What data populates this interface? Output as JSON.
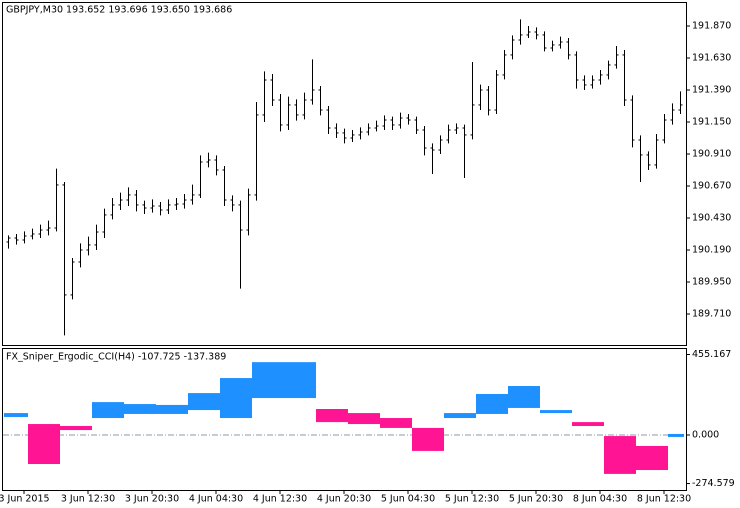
{
  "chart_data": [
    {
      "type": "ohlc",
      "title": "GBPJPY,M30  193.652 193.696 193.650 193.686",
      "color": "#000000",
      "ylim": [
        189.4775,
        192.05
      ],
      "yticks": [
        {
          "value": 191.87,
          "label": "191.870"
        },
        {
          "value": 191.63,
          "label": "191.630"
        },
        {
          "value": 191.39,
          "label": "191.390"
        },
        {
          "value": 191.15,
          "label": "191.150"
        },
        {
          "value": 190.91,
          "label": "190.910"
        },
        {
          "value": 190.67,
          "label": "190.670"
        },
        {
          "value": 190.43,
          "label": "190.430"
        },
        {
          "value": 190.19,
          "label": "190.190"
        },
        {
          "value": 189.95,
          "label": "189.950"
        },
        {
          "value": 189.71,
          "label": "189.710"
        }
      ],
      "open": [
        190.25,
        190.28,
        190.265,
        190.295,
        190.31,
        190.34,
        190.355,
        190.678,
        189.853,
        190.1,
        190.19,
        190.228,
        190.325,
        190.453,
        190.528,
        190.565,
        190.603,
        190.528,
        190.505,
        190.52,
        190.49,
        190.528,
        190.535,
        190.565,
        190.603,
        190.85,
        190.865,
        190.79,
        190.565,
        190.528,
        190.34,
        190.603,
        191.203,
        191.465,
        191.315,
        191.128,
        191.278,
        191.203,
        191.315,
        191.39,
        191.24,
        191.105,
        191.068,
        191.03,
        191.053,
        191.075,
        191.105,
        191.12,
        191.165,
        191.128,
        191.18,
        191.165,
        191.09,
        190.955,
        190.94,
        191.015,
        191.09,
        191.105,
        191.053,
        191.278,
        191.39,
        191.24,
        191.503,
        191.653,
        191.765,
        191.803,
        191.825,
        191.803,
        191.705,
        191.728,
        191.75,
        191.653,
        191.465,
        191.428,
        191.465,
        191.503,
        191.578,
        191.653,
        191.315,
        191.015,
        190.903,
        190.828,
        191.015,
        191.165,
        191.24
      ],
      "high": [
        190.3,
        190.31,
        190.33,
        190.35,
        190.38,
        190.41,
        190.8,
        190.7,
        190.13,
        190.24,
        190.29,
        190.38,
        190.5,
        190.58,
        190.62,
        190.66,
        190.64,
        190.56,
        190.57,
        190.55,
        190.57,
        190.58,
        190.61,
        190.68,
        190.9,
        190.92,
        190.9,
        190.82,
        190.6,
        190.56,
        190.65,
        191.3,
        191.53,
        191.51,
        191.36,
        191.34,
        191.32,
        191.37,
        191.62,
        191.42,
        191.27,
        191.14,
        191.1,
        191.09,
        191.11,
        191.14,
        191.16,
        191.2,
        191.19,
        191.22,
        191.21,
        191.19,
        191.12,
        190.99,
        191.05,
        191.13,
        191.14,
        191.13,
        191.6,
        191.43,
        191.42,
        191.54,
        191.69,
        191.8,
        191.92,
        191.87,
        191.86,
        191.83,
        191.76,
        191.79,
        191.78,
        191.68,
        191.5,
        191.5,
        191.54,
        191.61,
        191.72,
        191.69,
        191.35,
        191.05,
        190.93,
        191.06,
        191.21,
        191.29,
        191.38
      ],
      "low": [
        190.2,
        190.23,
        190.24,
        190.27,
        190.28,
        190.3,
        190.33,
        189.55,
        189.82,
        190.06,
        190.15,
        190.19,
        190.28,
        190.42,
        190.49,
        190.52,
        190.48,
        190.46,
        190.47,
        190.45,
        190.46,
        190.49,
        190.5,
        190.53,
        190.58,
        190.81,
        190.75,
        190.52,
        190.48,
        189.9,
        190.3,
        190.56,
        191.15,
        191.27,
        191.08,
        191.09,
        191.16,
        191.17,
        191.28,
        191.2,
        191.06,
        191.03,
        190.99,
        191.0,
        191.02,
        191.05,
        191.08,
        191.09,
        191.09,
        191.1,
        191.13,
        191.06,
        190.9,
        190.76,
        190.91,
        190.99,
        191.06,
        190.73,
        191.02,
        191.24,
        191.2,
        191.21,
        191.47,
        191.62,
        191.73,
        191.78,
        191.77,
        191.68,
        191.68,
        191.7,
        191.62,
        191.4,
        191.39,
        191.4,
        191.43,
        191.47,
        191.55,
        191.27,
        190.96,
        190.7,
        190.79,
        190.8,
        190.99,
        191.13,
        191.21
      ],
      "close": [
        190.28,
        190.265,
        190.295,
        190.31,
        190.34,
        190.355,
        190.678,
        189.853,
        190.1,
        190.19,
        190.228,
        190.325,
        190.453,
        190.528,
        190.565,
        190.603,
        190.528,
        190.505,
        190.52,
        190.49,
        190.528,
        190.535,
        190.565,
        190.603,
        190.85,
        190.865,
        190.79,
        190.565,
        190.528,
        190.34,
        190.603,
        191.203,
        191.465,
        191.315,
        191.128,
        191.278,
        191.203,
        191.315,
        191.39,
        191.24,
        191.105,
        191.068,
        191.03,
        191.053,
        191.075,
        191.105,
        191.12,
        191.165,
        191.128,
        191.18,
        191.165,
        191.09,
        190.955,
        190.94,
        191.015,
        191.09,
        191.105,
        191.053,
        191.278,
        191.39,
        191.24,
        191.503,
        191.653,
        191.765,
        191.803,
        191.825,
        191.803,
        191.705,
        191.728,
        191.75,
        191.653,
        191.465,
        191.428,
        191.465,
        191.503,
        191.578,
        191.653,
        191.315,
        191.015,
        190.903,
        190.828,
        191.015,
        191.165,
        191.24,
        191.278
      ]
    },
    {
      "type": "band",
      "title": "FX_Sniper_Ergodic_CCI(H4) -107.725 -137.389",
      "up_color": "#1e90ff",
      "down_color": "#ff1493",
      "zero_line": true,
      "ylim": [
        -311,
        492
      ],
      "yticks": [
        455.167,
        {
          "value": 0,
          "label": "0.000"
        },
        -274.579
      ],
      "categories": [
        null,
        null,
        "3 Jun 2015",
        null,
        null,
        null,
        null,
        null,
        null,
        null,
        "3 Jun 12:30",
        null,
        null,
        null,
        null,
        null,
        null,
        null,
        "3 Jun 20:30",
        null,
        null,
        null,
        null,
        null,
        null,
        null,
        "4 Jun 04:30",
        null,
        null,
        null,
        null,
        null,
        null,
        null,
        "4 Jun 12:30",
        null,
        null,
        null,
        null,
        null,
        null,
        null,
        "4 Jun 20:30",
        null,
        null,
        null,
        null,
        null,
        null,
        null,
        "5 Jun 04:30",
        null,
        null,
        null,
        null,
        null,
        null,
        null,
        "5 Jun 12:30",
        null,
        null,
        null,
        null,
        null,
        null,
        null,
        "5 Jun 20:30",
        null,
        null,
        null,
        null,
        null,
        null,
        null,
        "8 Jun 04:30",
        null,
        null,
        null,
        null,
        null,
        null,
        null,
        "8 Jun 12:30",
        null,
        null
      ],
      "main": [
        124,
        124,
        124,
        -164,
        -164,
        -164,
        -164,
        28,
        28,
        28,
        28,
        186,
        186,
        186,
        186,
        175,
        175,
        175,
        175,
        170,
        170,
        170,
        170,
        237,
        237,
        237,
        237,
        322,
        322,
        322,
        322,
        412,
        412,
        412,
        412,
        412,
        412,
        412,
        412,
        73,
        73,
        73,
        73,
        62,
        62,
        62,
        62,
        40,
        40,
        40,
        40,
        -90,
        -90,
        -90,
        -90,
        124,
        124,
        124,
        124,
        232,
        232,
        232,
        232,
        277,
        277,
        277,
        277,
        141,
        141,
        141,
        141,
        51,
        51,
        51,
        51,
        -220,
        -220,
        -220,
        -220,
        -198,
        -198,
        -198,
        -198,
        6,
        6
      ],
      "signal": [
        102,
        102,
        102,
        62,
        62,
        62,
        62,
        51,
        51,
        51,
        51,
        96,
        96,
        96,
        96,
        119,
        119,
        119,
        119,
        119,
        119,
        119,
        119,
        141,
        141,
        141,
        141,
        96,
        96,
        96,
        96,
        209,
        209,
        209,
        209,
        209,
        209,
        209,
        209,
        147,
        147,
        147,
        147,
        124,
        124,
        124,
        124,
        96,
        96,
        96,
        96,
        40,
        40,
        40,
        40,
        96,
        96,
        96,
        96,
        119,
        119,
        119,
        119,
        153,
        153,
        153,
        153,
        124,
        124,
        124,
        124,
        73,
        73,
        73,
        73,
        -6,
        -6,
        -6,
        -6,
        -62,
        -62,
        -62,
        -62,
        -11,
        -11
      ]
    }
  ]
}
